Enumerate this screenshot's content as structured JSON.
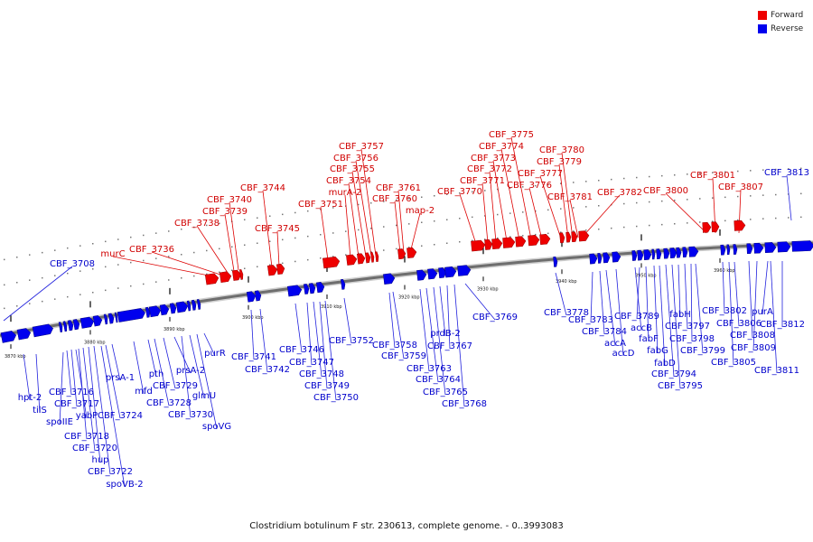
{
  "legend": {
    "forward": {
      "label": "Forward",
      "color": "#ee0000"
    },
    "reverse": {
      "label": "Reverse",
      "color": "#0000ee"
    }
  },
  "caption": "Clostridium botulinum F str. 230613, complete genome. - 0..3993083",
  "axis_ticks": [
    "3870 kbp",
    "3880 kbp",
    "3890 kbp",
    "3900 kbp",
    "3910 kbp",
    "3920 kbp",
    "3930 kbp",
    "3940 kbp",
    "3950 kbp",
    "3960 kbp"
  ],
  "forward_genes": [
    "murC",
    "CBF_3736",
    "CBF_3738",
    "CBF_3739",
    "CBF_3740",
    "CBF_3744",
    "CBF_3745",
    "CBF_3751",
    "murA-2",
    "CBF_3754",
    "CBF_3755",
    "CBF_3756",
    "CBF_3757",
    "CBF_3760",
    "CBF_3761",
    "map-2",
    "CBF_3770",
    "CBF_3771",
    "CBF_3772",
    "CBF_3773",
    "CBF_3774",
    "CBF_3775",
    "CBF_3776",
    "CBF_3777",
    "CBF_3779",
    "CBF_3780",
    "CBF_3781",
    "CBF_3782",
    "CBF_3800",
    "CBF_3801",
    "CBF_3807"
  ],
  "reverse_genes": [
    "CBF_3708",
    "hpt-2",
    "tilS",
    "spoIIE",
    "CBF_3716",
    "CBF_3717",
    "yabP",
    "CBF_3718",
    "CBF_3720",
    "hup",
    "CBF_3722",
    "spoVB-2",
    "CBF_3724",
    "prsA-1",
    "mfd",
    "pth",
    "CBF_3728",
    "CBF_3729",
    "prsA-2",
    "CBF_3730",
    "glmU",
    "spoVG",
    "purR",
    "CBF_3741",
    "CBF_3742",
    "CBF_3746",
    "CBF_3747",
    "CBF_3748",
    "CBF_3749",
    "CBF_3750",
    "CBF_3752",
    "CBF_3758",
    "CBF_3759",
    "CBF_3763",
    "CBF_3764",
    "CBF_3765",
    "prdB-2",
    "CBF_3767",
    "CBF_3768",
    "CBF_3769",
    "CBF_3778",
    "CBF_3783",
    "CBF_3784",
    "accA",
    "accD",
    "accB",
    "CBF_3789",
    "fabF",
    "fabG",
    "fabD",
    "CBF_3794",
    "CBF_3795",
    "fabH",
    "CBF_3797",
    "CBF_3798",
    "CBF_3799",
    "CBF_3802",
    "CBF_3805",
    "CBF_3806",
    "CBF_3808",
    "CBF_3809",
    "purA",
    "CBF_3811",
    "CBF_3812",
    "CBF_3813"
  ]
}
